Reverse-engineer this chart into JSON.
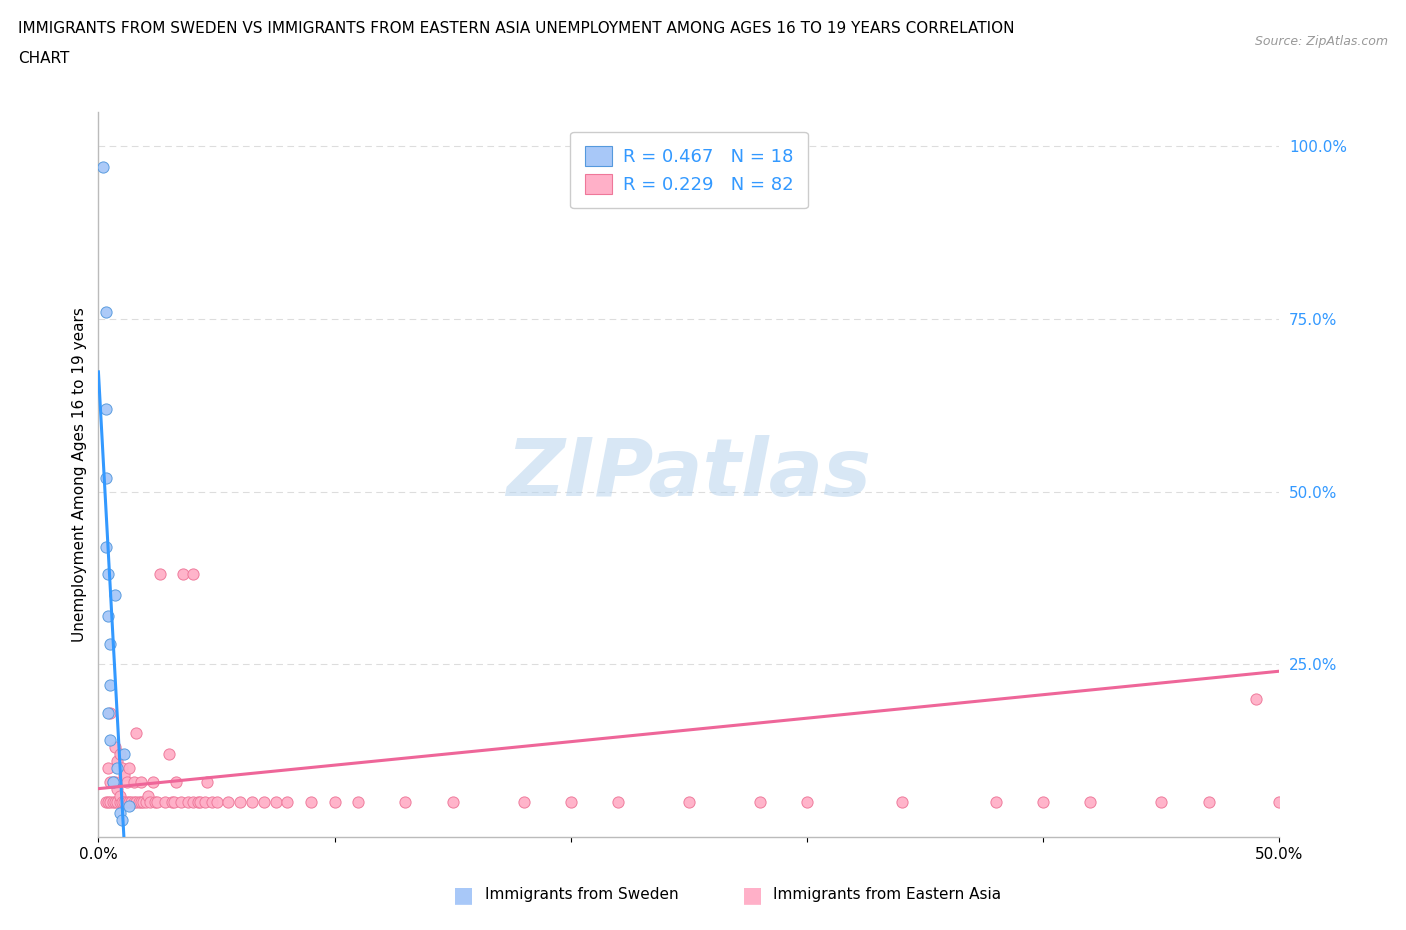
{
  "title_line1": "IMMIGRANTS FROM SWEDEN VS IMMIGRANTS FROM EASTERN ASIA UNEMPLOYMENT AMONG AGES 16 TO 19 YEARS CORRELATION",
  "title_line2": "CHART",
  "source_text": "Source: ZipAtlas.com",
  "ylabel": "Unemployment Among Ages 16 to 19 years",
  "xlim": [
    0.0,
    0.5
  ],
  "ylim": [
    0.0,
    1.05
  ],
  "watermark": "ZIPatlas",
  "sweden_color": "#a8c8f8",
  "sweden_edge_color": "#5599dd",
  "eastern_asia_color": "#ffb0c8",
  "eastern_asia_edge_color": "#ee7799",
  "sweden_line_color": "#3399ff",
  "eastern_asia_line_color": "#ee6699",
  "legend_label_color": "#3399ff",
  "grid_color": "#dddddd",
  "sweden_x": [
    0.002,
    0.003,
    0.003,
    0.003,
    0.003,
    0.004,
    0.004,
    0.004,
    0.005,
    0.005,
    0.005,
    0.006,
    0.007,
    0.008,
    0.009,
    0.01,
    0.011,
    0.013
  ],
  "sweden_y": [
    0.97,
    0.76,
    0.62,
    0.52,
    0.42,
    0.38,
    0.32,
    0.18,
    0.28,
    0.22,
    0.14,
    0.08,
    0.35,
    0.1,
    0.035,
    0.025,
    0.12,
    0.045
  ],
  "ea_x": [
    0.003,
    0.004,
    0.004,
    0.005,
    0.005,
    0.005,
    0.006,
    0.006,
    0.007,
    0.007,
    0.007,
    0.008,
    0.008,
    0.008,
    0.009,
    0.009,
    0.009,
    0.01,
    0.01,
    0.011,
    0.011,
    0.012,
    0.012,
    0.013,
    0.013,
    0.014,
    0.015,
    0.015,
    0.016,
    0.016,
    0.017,
    0.018,
    0.018,
    0.019,
    0.02,
    0.021,
    0.022,
    0.023,
    0.024,
    0.025,
    0.026,
    0.028,
    0.03,
    0.031,
    0.032,
    0.033,
    0.035,
    0.036,
    0.038,
    0.04,
    0.04,
    0.042,
    0.043,
    0.045,
    0.046,
    0.048,
    0.05,
    0.055,
    0.06,
    0.065,
    0.07,
    0.075,
    0.08,
    0.09,
    0.1,
    0.11,
    0.13,
    0.15,
    0.18,
    0.2,
    0.22,
    0.25,
    0.28,
    0.3,
    0.34,
    0.38,
    0.4,
    0.42,
    0.45,
    0.47,
    0.49,
    0.5
  ],
  "ea_y": [
    0.05,
    0.05,
    0.1,
    0.05,
    0.08,
    0.18,
    0.05,
    0.08,
    0.05,
    0.08,
    0.13,
    0.05,
    0.07,
    0.11,
    0.05,
    0.06,
    0.12,
    0.05,
    0.1,
    0.05,
    0.09,
    0.05,
    0.08,
    0.05,
    0.1,
    0.05,
    0.05,
    0.08,
    0.05,
    0.15,
    0.05,
    0.05,
    0.08,
    0.05,
    0.05,
    0.06,
    0.05,
    0.08,
    0.05,
    0.05,
    0.38,
    0.05,
    0.12,
    0.05,
    0.05,
    0.08,
    0.05,
    0.38,
    0.05,
    0.05,
    0.38,
    0.05,
    0.05,
    0.05,
    0.08,
    0.05,
    0.05,
    0.05,
    0.05,
    0.05,
    0.05,
    0.05,
    0.05,
    0.05,
    0.05,
    0.05,
    0.05,
    0.05,
    0.05,
    0.05,
    0.05,
    0.05,
    0.05,
    0.05,
    0.05,
    0.05,
    0.05,
    0.05,
    0.05,
    0.05,
    0.2,
    0.05
  ]
}
